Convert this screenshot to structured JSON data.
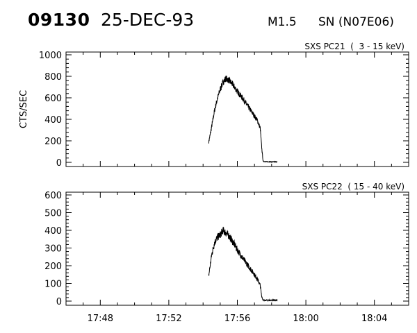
{
  "header": {
    "event_id": "09130",
    "date": "25-DEC-93",
    "flare_class": "M1.5",
    "location": "SN (N07E06)"
  },
  "chart_data": [
    {
      "type": "line",
      "title": "SXS PC21  (  3 - 15 keV)",
      "ylabel": "CTS/SEC",
      "ylim": [
        0,
        1000
      ],
      "yticks": [
        "0",
        "200",
        "400",
        "600",
        "800",
        "1000"
      ],
      "xlim": [
        "17:46",
        "18:06"
      ],
      "xticks": [
        "17:48",
        "17:52",
        "17:56",
        "18:00",
        "18:04"
      ],
      "grid": false,
      "series": [
        {
          "x": [
            "17:54:20",
            "17:54:30",
            "17:54:40",
            "17:54:50",
            "17:55:00",
            "17:55:10",
            "17:55:20",
            "17:55:30",
            "17:55:40",
            "17:55:50",
            "17:56:00",
            "17:56:20",
            "17:56:40",
            "17:57:00",
            "17:57:10",
            "17:57:20",
            "17:57:25",
            "17:57:30",
            "17:57:40",
            "17:58:00",
            "17:58:10",
            "17:58:20"
          ],
          "y": [
            190,
            330,
            480,
            590,
            680,
            745,
            780,
            765,
            735,
            700,
            660,
            590,
            510,
            430,
            390,
            320,
            150,
            10,
            5,
            5,
            5,
            5
          ]
        }
      ]
    },
    {
      "type": "line",
      "title": "SXS PC22  ( 15 - 40 keV)",
      "ylabel": "",
      "ylim": [
        0,
        600
      ],
      "yticks": [
        "0",
        "100",
        "200",
        "300",
        "400",
        "500",
        "600"
      ],
      "xlim": [
        "17:46",
        "18:06"
      ],
      "xticks": [
        "17:48",
        "17:52",
        "17:56",
        "18:00",
        "18:04"
      ],
      "grid": false,
      "series": [
        {
          "x": [
            "17:54:20",
            "17:54:30",
            "17:54:40",
            "17:54:50",
            "17:55:00",
            "17:55:10",
            "17:55:20",
            "17:55:30",
            "17:55:40",
            "17:55:50",
            "17:56:00",
            "17:56:20",
            "17:56:40",
            "17:57:00",
            "17:57:10",
            "17:57:20",
            "17:57:25",
            "17:57:30",
            "17:57:40",
            "17:58:00",
            "17:58:10",
            "17:58:20"
          ],
          "y": [
            145,
            260,
            330,
            360,
            375,
            400,
            385,
            370,
            345,
            320,
            290,
            240,
            195,
            150,
            125,
            90,
            30,
            5,
            5,
            5,
            5,
            5
          ]
        }
      ]
    }
  ]
}
